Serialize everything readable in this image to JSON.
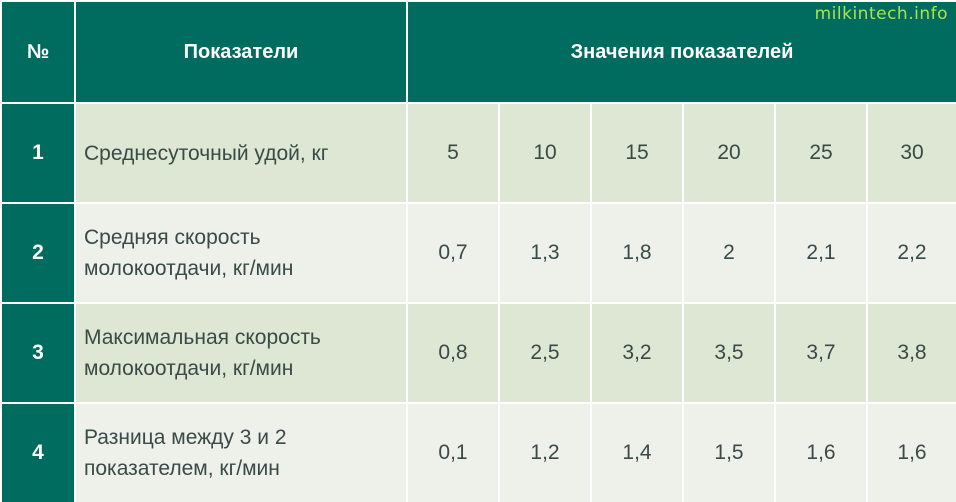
{
  "watermark": "milkintech.info",
  "header": {
    "num": "№",
    "indicators": "Показатели",
    "values": "Значения показателей"
  },
  "rows": [
    {
      "num": "1",
      "label_line1": "Среднесуточный удой, кг",
      "label_line2": "",
      "values": [
        "5",
        "10",
        "15",
        "20",
        "25",
        "30"
      ]
    },
    {
      "num": "2",
      "label_line1": "Средняя скорость",
      "label_line2": "молокоотдачи, кг/мин",
      "values": [
        "0,7",
        "1,3",
        "1,8",
        "2",
        "2,1",
        "2,2"
      ]
    },
    {
      "num": "3",
      "label_line1": "Максимальная скорость",
      "label_line2": "молокоотдачи, кг/мин",
      "values": [
        "0,8",
        "2,5",
        "3,2",
        "3,5",
        "3,7",
        "3,8"
      ]
    },
    {
      "num": "4",
      "label_line1": "Разница между 3 и 2",
      "label_line2": "показателем, кг/мин",
      "values": [
        "0,1",
        "1,2",
        "1,4",
        "1,5",
        "1,6",
        "1,6"
      ]
    }
  ],
  "colors": {
    "header_bg": "#006b5f",
    "row_light_green": "#dde7d4",
    "row_light_grey": "#edf1ea",
    "text": "#3a4a47",
    "watermark": "#b3e04a"
  }
}
